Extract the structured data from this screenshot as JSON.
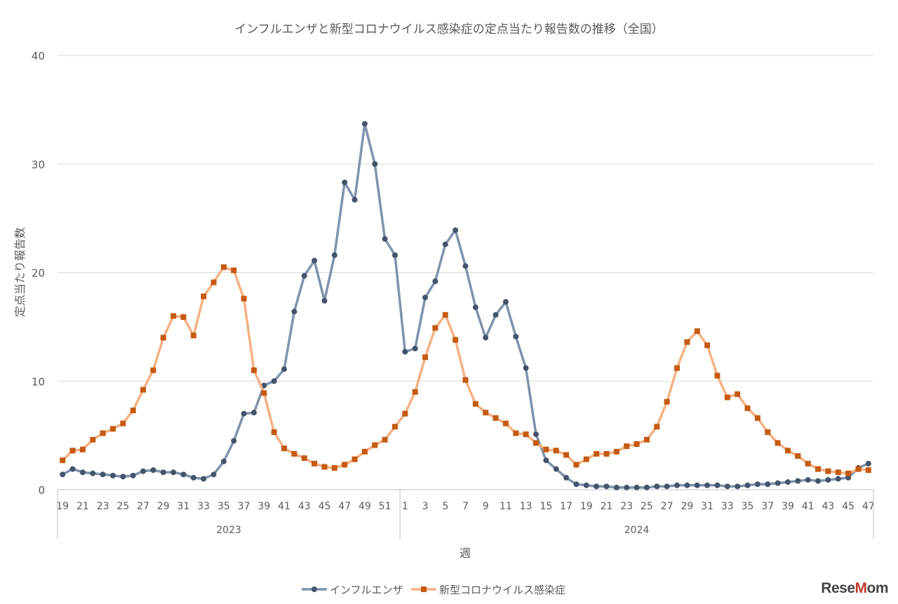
{
  "chart_data": {
    "type": "line",
    "title": "インフルエンザと新型コロナウイルス感染症の定点当たり報告数の推移（全国）",
    "xlabel": "週",
    "ylabel": "定点当たり報告数",
    "ylim": [
      0,
      40
    ],
    "yticks": [
      0,
      10,
      20,
      30,
      40
    ],
    "grid": true,
    "legend": "bottom",
    "groups": [
      {
        "label": "2023",
        "weeks": [
          19,
          20,
          21,
          22,
          23,
          24,
          25,
          26,
          27,
          28,
          29,
          30,
          31,
          32,
          33,
          34,
          35,
          36,
          37,
          38,
          39,
          40,
          41,
          42,
          43,
          44,
          45,
          46,
          47,
          48,
          49,
          50,
          51,
          52
        ]
      },
      {
        "label": "2024",
        "weeks": [
          1,
          2,
          3,
          4,
          5,
          6,
          7,
          8,
          9,
          10,
          11,
          12,
          13,
          14,
          15,
          16,
          17,
          18,
          19,
          20,
          21,
          22,
          23,
          24,
          25,
          26,
          27,
          28,
          29,
          30,
          31,
          32,
          33,
          34,
          35,
          36,
          37,
          38,
          39,
          40,
          41,
          42,
          43,
          44,
          45,
          46,
          47
        ]
      }
    ],
    "series": [
      {
        "name": "インフルエンザ",
        "color": "#7f93ad",
        "marker_color": "#44546a",
        "marker": "circle",
        "values": [
          1.4,
          1.9,
          1.6,
          1.5,
          1.4,
          1.3,
          1.2,
          1.3,
          1.7,
          1.8,
          1.6,
          1.6,
          1.4,
          1.1,
          1.0,
          1.4,
          2.6,
          4.5,
          7.0,
          7.1,
          9.6,
          10.0,
          11.1,
          16.4,
          19.7,
          21.1,
          17.4,
          21.6,
          28.3,
          26.7,
          33.7,
          30.0,
          23.1,
          21.6,
          12.7,
          13.0,
          17.7,
          19.2,
          22.6,
          23.9,
          20.6,
          16.8,
          14.0,
          16.1,
          17.3,
          14.1,
          11.2,
          5.1,
          2.7,
          1.9,
          1.1,
          0.5,
          0.4,
          0.3,
          0.3,
          0.2,
          0.2,
          0.2,
          0.2,
          0.3,
          0.3,
          0.4,
          0.4,
          0.4,
          0.4,
          0.4,
          0.3,
          0.3,
          0.4,
          0.5,
          0.5,
          0.6,
          0.7,
          0.8,
          0.9,
          0.8,
          0.9,
          1.0,
          1.1,
          2.0,
          2.4
        ]
      },
      {
        "name": "新型コロナウイルス感染症",
        "color": "#f4b183",
        "marker_color": "#c55a11",
        "marker": "square",
        "values": [
          2.7,
          3.6,
          3.7,
          4.6,
          5.2,
          5.6,
          6.1,
          7.3,
          9.2,
          11.0,
          14.0,
          16.0,
          15.9,
          14.2,
          17.8,
          19.1,
          20.5,
          20.2,
          17.6,
          11.0,
          8.9,
          5.3,
          3.8,
          3.3,
          2.9,
          2.4,
          2.1,
          2.0,
          2.3,
          2.8,
          3.5,
          4.1,
          4.6,
          5.8,
          7.0,
          9.0,
          12.2,
          14.9,
          16.1,
          13.8,
          10.1,
          7.9,
          7.1,
          6.6,
          6.1,
          5.2,
          5.1,
          4.3,
          3.7,
          3.6,
          3.2,
          2.3,
          2.8,
          3.3,
          3.3,
          3.5,
          4.0,
          4.2,
          4.6,
          5.8,
          8.1,
          11.2,
          13.6,
          14.6,
          13.3,
          10.5,
          8.5,
          8.8,
          7.5,
          6.6,
          5.3,
          4.3,
          3.6,
          3.1,
          2.4,
          1.9,
          1.7,
          1.6,
          1.5,
          1.9,
          1.8
        ]
      }
    ]
  },
  "logo": "ReseMom"
}
